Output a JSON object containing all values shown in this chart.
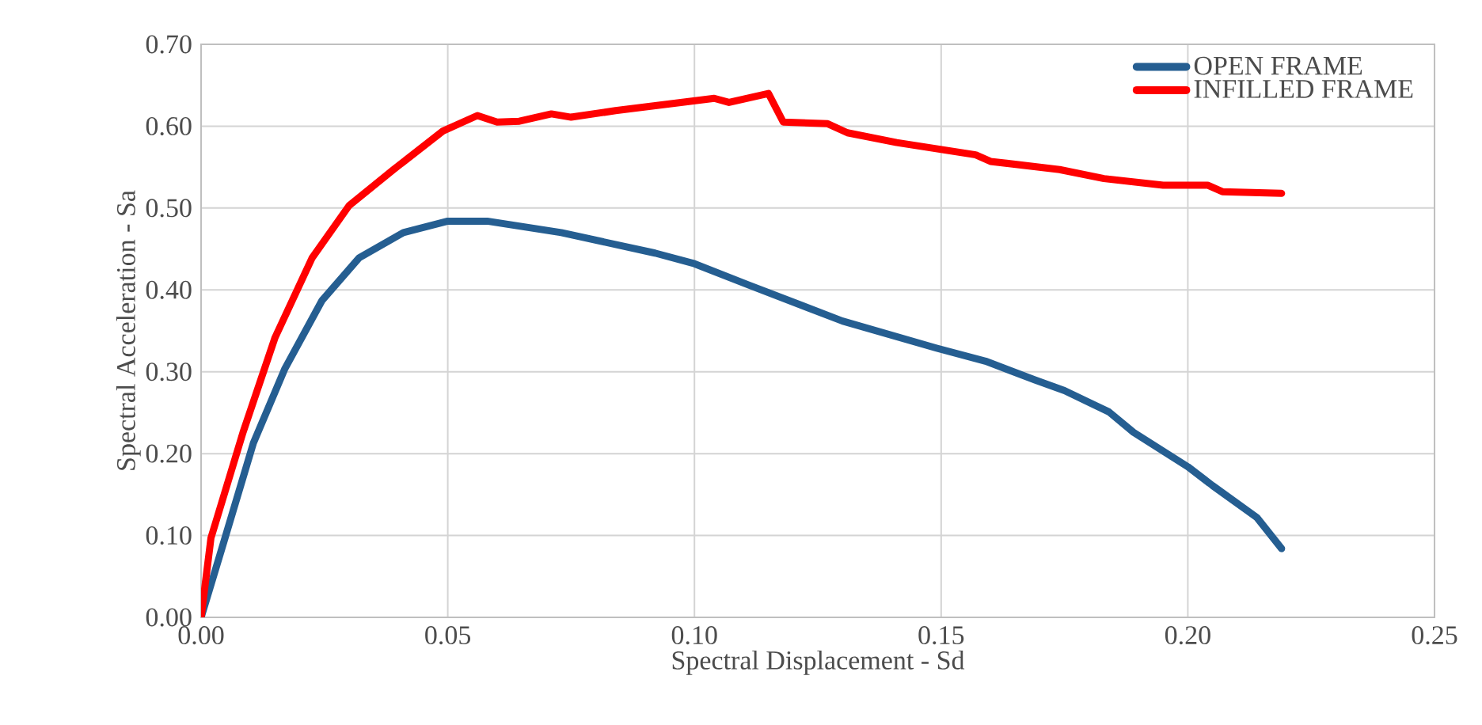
{
  "chart_data": {
    "type": "line",
    "xlabel": "Spectral Displacement - Sd",
    "ylabel": "Spectral Acceleration - Sa",
    "xlim": [
      0,
      0.25
    ],
    "xticks": [
      {
        "value": 0,
        "label": "0.00"
      },
      {
        "value": 0.05,
        "label": "0.05"
      },
      {
        "value": 0.1,
        "label": "0.10"
      },
      {
        "value": 0.15,
        "label": "0.15"
      },
      {
        "value": 0.2,
        "label": "0.20"
      },
      {
        "value": 0.25,
        "label": "0.25"
      }
    ],
    "ylim": [
      0,
      0.7
    ],
    "yticks": [
      {
        "value": 0,
        "label": "0.00"
      },
      {
        "value": 0.1,
        "label": "0.10"
      },
      {
        "value": 0.2,
        "label": "0.20"
      },
      {
        "value": 0.3,
        "label": "0.30"
      },
      {
        "value": 0.4,
        "label": "0.40"
      },
      {
        "value": 0.5,
        "label": "0.50"
      },
      {
        "value": 0.6,
        "label": "0.60"
      },
      {
        "value": 0.7,
        "label": "0.70"
      }
    ],
    "grid": true,
    "legend": "top right",
    "marker": "none",
    "line_style": "solid",
    "series": [
      {
        "name": "OPEN FRAME",
        "color": "#255e91",
        "x": [
          0,
          0.0042,
          0.0106,
          0.017,
          0.0245,
          0.032,
          0.041,
          0.05,
          0.058,
          0.073,
          0.092,
          0.1,
          0.111,
          0.13,
          0.149,
          0.159,
          0.169,
          0.175,
          0.184,
          0.189,
          0.2,
          0.205,
          0.214,
          0.219
        ],
        "values": [
          0,
          0.084,
          0.213,
          0.304,
          0.387,
          0.439,
          0.47,
          0.484,
          0.484,
          0.47,
          0.445,
          0.432,
          0.406,
          0.362,
          0.329,
          0.313,
          0.29,
          0.277,
          0.251,
          0.226,
          0.184,
          0.161,
          0.122,
          0.084
        ]
      },
      {
        "name": "INFILLED FRAME",
        "color": "#ff0000",
        "x": [
          0,
          0.002,
          0.0085,
          0.015,
          0.0225,
          0.03,
          0.039,
          0.049,
          0.056,
          0.06,
          0.0645,
          0.071,
          0.075,
          0.084,
          0.104,
          0.107,
          0.115,
          0.118,
          0.127,
          0.131,
          0.141,
          0.157,
          0.16,
          0.174,
          0.183,
          0.195,
          0.204,
          0.207,
          0.219
        ],
        "values": [
          0,
          0.097,
          0.226,
          0.342,
          0.439,
          0.503,
          0.547,
          0.594,
          0.613,
          0.605,
          0.606,
          0.615,
          0.611,
          0.619,
          0.634,
          0.629,
          0.64,
          0.605,
          0.603,
          0.592,
          0.58,
          0.565,
          0.557,
          0.547,
          0.536,
          0.528,
          0.528,
          0.52,
          0.518
        ]
      }
    ]
  }
}
